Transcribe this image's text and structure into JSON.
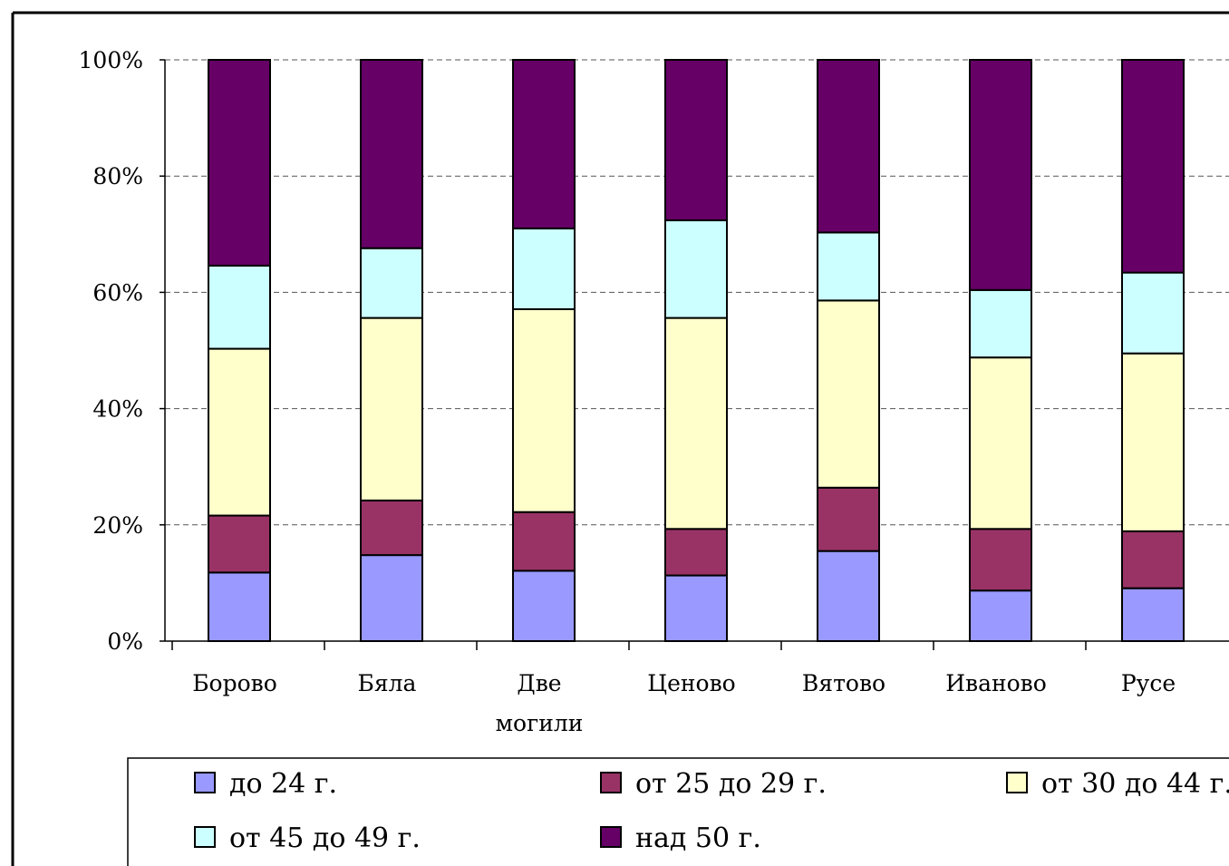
{
  "chart_data": {
    "type": "bar",
    "stacked": "percent",
    "y_ticks": [
      "0%",
      "20%",
      "40%",
      "60%",
      "80%",
      "100%"
    ],
    "ylim": [
      0,
      100
    ],
    "grid": "horizontal dashed",
    "legend_position": "bottom",
    "categories": [
      [
        "Борово"
      ],
      [
        "Бяла"
      ],
      [
        "Две",
        "могили"
      ],
      [
        "Ценово"
      ],
      [
        "Вятово"
      ],
      [
        "Иваново"
      ],
      [
        "Русе"
      ]
    ],
    "series": [
      {
        "name": "до 24 г.",
        "color": "#9999ff",
        "values": [
          11.8,
          14.8,
          12.1,
          11.3,
          15.5,
          8.7,
          9.1
        ]
      },
      {
        "name": "от 25 до 29 г.",
        "color": "#993366",
        "values": [
          9.8,
          9.4,
          10.1,
          8.0,
          10.9,
          10.6,
          9.8
        ]
      },
      {
        "name": "от 30 до 44 г.",
        "color": "#ffffcc",
        "values": [
          28.7,
          31.4,
          34.9,
          36.3,
          32.2,
          29.5,
          30.6
        ]
      },
      {
        "name": "от 45 до 49 г.",
        "color": "#ccffff",
        "values": [
          14.3,
          12.0,
          13.9,
          16.8,
          11.7,
          11.6,
          13.9
        ]
      },
      {
        "name": "над 50 г.",
        "color": "#660066",
        "values": [
          35.4,
          32.4,
          29.0,
          27.6,
          29.7,
          39.6,
          36.6
        ]
      }
    ]
  }
}
